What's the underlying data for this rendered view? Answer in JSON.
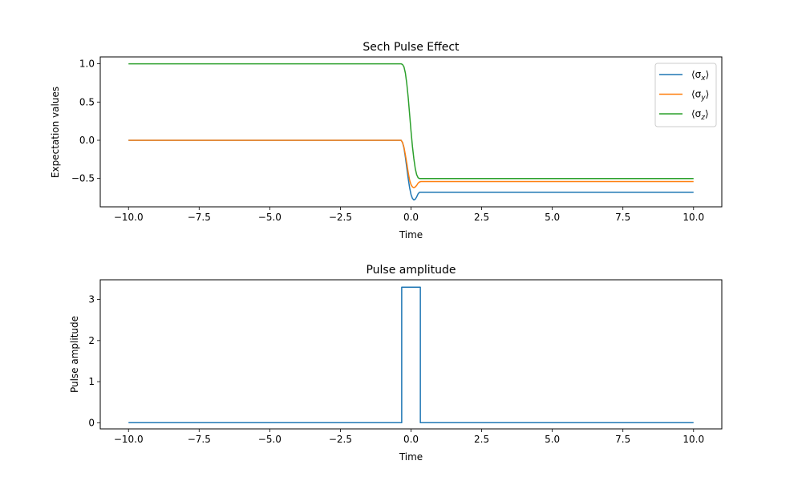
{
  "chart_data": [
    {
      "type": "line",
      "title": "Sech Pulse Effect",
      "xlabel": "Time",
      "ylabel": "Expectation values",
      "xlim": [
        -11.0,
        11.0
      ],
      "ylim": [
        -0.87,
        1.09
      ],
      "xticks": [
        -10.0,
        -7.5,
        -5.0,
        -2.5,
        0.0,
        2.5,
        5.0,
        7.5,
        10.0
      ],
      "xtick_labels": [
        "−10.0",
        "−7.5",
        "−5.0",
        "−2.5",
        "0.0",
        "2.5",
        "5.0",
        "7.5",
        "10.0"
      ],
      "yticks": [
        1.0,
        0.5,
        0.0,
        -0.5
      ],
      "ytick_labels": [
        "1.0",
        "0.5",
        "0.0",
        "−0.5"
      ],
      "grid": false,
      "legend_position": "top-right",
      "series": [
        {
          "name": "⟨σx⟩",
          "legend_symbol": "⟨σ",
          "legend_sub": "x",
          "legend_close": "⟩",
          "color": "#1f77b4",
          "x": [
            -10,
            -0.35,
            -0.3,
            -0.25,
            -0.2,
            -0.15,
            -0.1,
            -0.05,
            0.0,
            0.05,
            0.1,
            0.15,
            0.2,
            0.25,
            0.3,
            0.35,
            0.5,
            10
          ],
          "y": [
            0.0,
            0.0,
            -0.03,
            -0.1,
            -0.22,
            -0.36,
            -0.5,
            -0.62,
            -0.71,
            -0.76,
            -0.78,
            -0.77,
            -0.74,
            -0.7,
            -0.68,
            -0.68,
            -0.68,
            -0.68
          ]
        },
        {
          "name": "⟨σy⟩",
          "legend_symbol": "⟨σ",
          "legend_sub": "y",
          "legend_close": "⟩",
          "color": "#ff7f0e",
          "x": [
            -10,
            -0.35,
            -0.3,
            -0.25,
            -0.2,
            -0.15,
            -0.1,
            -0.05,
            0.0,
            0.05,
            0.1,
            0.15,
            0.2,
            0.25,
            0.3,
            0.35,
            0.5,
            10
          ],
          "y": [
            0.0,
            0.0,
            -0.03,
            -0.09,
            -0.19,
            -0.3,
            -0.42,
            -0.52,
            -0.58,
            -0.61,
            -0.62,
            -0.61,
            -0.59,
            -0.56,
            -0.545,
            -0.54,
            -0.54,
            -0.54
          ]
        },
        {
          "name": "⟨σz⟩",
          "legend_symbol": "⟨σ",
          "legend_sub": "z",
          "legend_close": "⟩",
          "color": "#2ca02c",
          "x": [
            -10,
            -0.35,
            -0.3,
            -0.25,
            -0.2,
            -0.15,
            -0.1,
            -0.05,
            0.0,
            0.05,
            0.1,
            0.15,
            0.2,
            0.25,
            0.3,
            0.35,
            0.5,
            10
          ],
          "y": [
            1.0,
            1.0,
            0.99,
            0.96,
            0.88,
            0.74,
            0.56,
            0.34,
            0.12,
            -0.08,
            -0.24,
            -0.37,
            -0.45,
            -0.49,
            -0.5,
            -0.5,
            -0.5,
            -0.5
          ]
        }
      ]
    },
    {
      "type": "line",
      "title": "Pulse amplitude",
      "xlabel": "Time",
      "ylabel": "Pulse amplitude",
      "xlim": [
        -11.0,
        11.0
      ],
      "ylim": [
        -0.15,
        3.48
      ],
      "xticks": [
        -10.0,
        -7.5,
        -5.0,
        -2.5,
        0.0,
        2.5,
        5.0,
        7.5,
        10.0
      ],
      "xtick_labels": [
        "−10.0",
        "−7.5",
        "−5.0",
        "−2.5",
        "0.0",
        "2.5",
        "5.0",
        "7.5",
        "10.0"
      ],
      "yticks": [
        3,
        2,
        1,
        0
      ],
      "ytick_labels": [
        "3",
        "2",
        "1",
        "0"
      ],
      "grid": false,
      "series": [
        {
          "color": "#1f77b4",
          "x": [
            -10,
            -0.33,
            -0.33,
            0.33,
            0.33,
            10
          ],
          "y": [
            0,
            0,
            3.3,
            3.3,
            0,
            0
          ]
        }
      ]
    }
  ]
}
